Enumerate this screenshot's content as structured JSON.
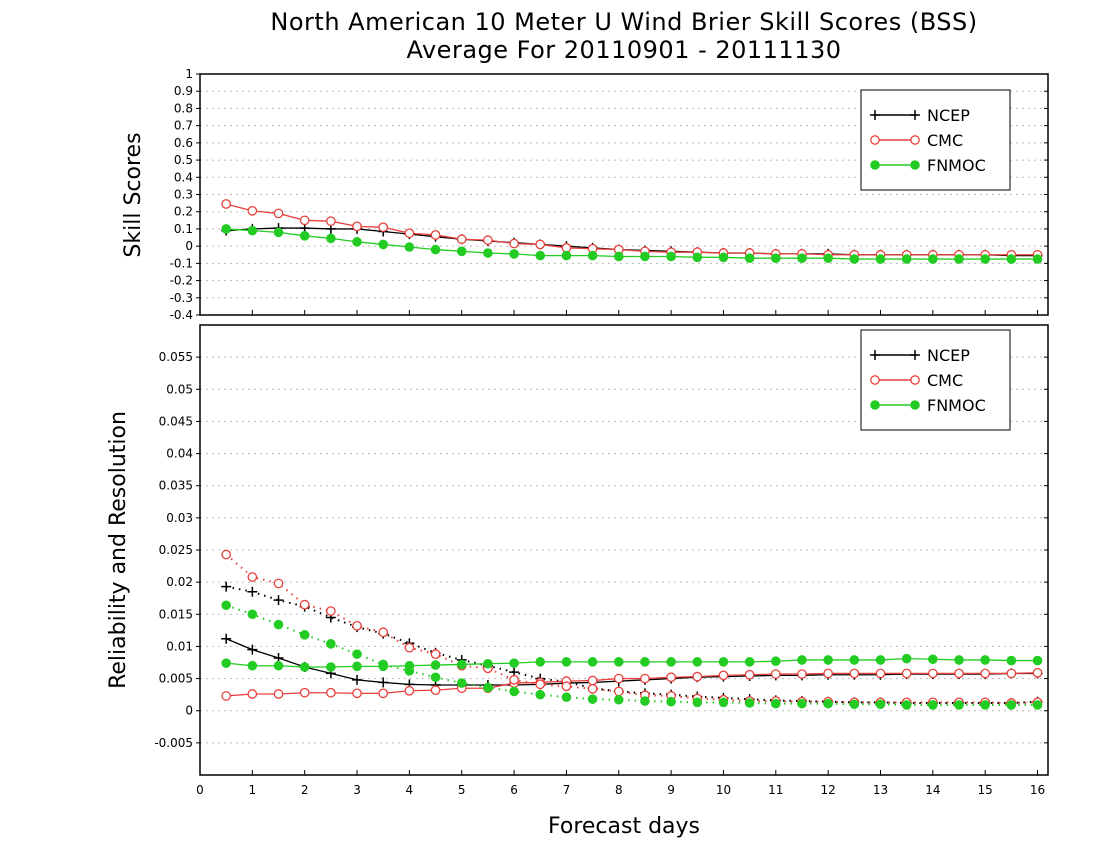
{
  "title_line1": "North American 10 Meter U Wind Brier Skill Scores (BSS)",
  "title_line2": "Average For 20110901 - 20111130",
  "xlabel": "Forecast days",
  "colors": {
    "NCEP": "#000000",
    "CMC": "#e8403c",
    "FNMOC": "#22cc22"
  },
  "chart_data": [
    {
      "type": "line",
      "ylabel": "Skill Scores",
      "xlim": [
        0,
        16.2
      ],
      "ylim": [
        -0.4,
        1
      ],
      "yticks": [
        "-0.4",
        "-0.3",
        "-0.2",
        "-0.1",
        "0",
        "0.1",
        "0.2",
        "0.3",
        "0.4",
        "0.5",
        "0.6",
        "0.7",
        "0.8",
        "0.9",
        "1"
      ],
      "grid": true,
      "legend": "top-right",
      "x": [
        0.5,
        1,
        1.5,
        2,
        2.5,
        3,
        3.5,
        4,
        4.5,
        5,
        5.5,
        6,
        6.5,
        7,
        7.5,
        8,
        8.5,
        9,
        9.5,
        10,
        10.5,
        11,
        11.5,
        12,
        12.5,
        13,
        13.5,
        14,
        14.5,
        15,
        15.5,
        16
      ],
      "series": [
        {
          "name": "NCEP",
          "style": "solid",
          "marker": "plus",
          "values": [
            0.09,
            0.1,
            0.105,
            0.105,
            0.1,
            0.1,
            0.085,
            0.07,
            0.055,
            0.04,
            0.03,
            0.02,
            0.01,
            0.0,
            -0.01,
            -0.02,
            -0.025,
            -0.03,
            -0.035,
            -0.04,
            -0.04,
            -0.045,
            -0.045,
            -0.045,
            -0.05,
            -0.05,
            -0.05,
            -0.05,
            -0.05,
            -0.05,
            -0.055,
            -0.055
          ]
        },
        {
          "name": "CMC",
          "style": "solid",
          "marker": "circle-open",
          "values": [
            0.245,
            0.205,
            0.19,
            0.15,
            0.145,
            0.115,
            0.11,
            0.075,
            0.065,
            0.04,
            0.035,
            0.015,
            0.01,
            -0.01,
            -0.015,
            -0.02,
            -0.03,
            -0.035,
            -0.035,
            -0.04,
            -0.04,
            -0.045,
            -0.045,
            -0.05,
            -0.05,
            -0.05,
            -0.05,
            -0.05,
            -0.05,
            -0.05,
            -0.05,
            -0.05
          ]
        },
        {
          "name": "FNMOC",
          "style": "solid",
          "marker": "circle-filled",
          "values": [
            0.1,
            0.09,
            0.08,
            0.06,
            0.045,
            0.025,
            0.01,
            -0.005,
            -0.02,
            -0.03,
            -0.04,
            -0.045,
            -0.055,
            -0.055,
            -0.055,
            -0.06,
            -0.06,
            -0.06,
            -0.065,
            -0.065,
            -0.07,
            -0.07,
            -0.07,
            -0.07,
            -0.075,
            -0.075,
            -0.075,
            -0.075,
            -0.075,
            -0.075,
            -0.075,
            -0.075
          ]
        }
      ]
    },
    {
      "type": "line",
      "ylabel": "Reliability and Resolution",
      "xlim": [
        0,
        16.2
      ],
      "ylim": [
        -0.01,
        0.06
      ],
      "yticks": [
        "-0.005",
        "0",
        "0.005",
        "0.01",
        "0.015",
        "0.02",
        "0.025",
        "0.03",
        "0.035",
        "0.04",
        "0.045",
        "0.05",
        "0.055"
      ],
      "xticks": [
        "0",
        "1",
        "2",
        "3",
        "4",
        "5",
        "6",
        "7",
        "8",
        "9",
        "10",
        "11",
        "12",
        "13",
        "14",
        "15",
        "16"
      ],
      "grid": true,
      "legend": "top-right",
      "x": [
        0.5,
        1,
        1.5,
        2,
        2.5,
        3,
        3.5,
        4,
        4.5,
        5,
        5.5,
        6,
        6.5,
        7,
        7.5,
        8,
        8.5,
        9,
        9.5,
        10,
        10.5,
        11,
        11.5,
        12,
        12.5,
        13,
        13.5,
        14,
        14.5,
        15,
        15.5,
        16
      ],
      "series": [
        {
          "name": "NCEP",
          "style": "solid",
          "marker": "plus",
          "values": [
            0.0112,
            0.0095,
            0.0082,
            0.0068,
            0.0058,
            0.0048,
            0.0044,
            0.0041,
            0.004,
            0.004,
            0.004,
            0.004,
            0.0041,
            0.0043,
            0.0044,
            0.0046,
            0.0048,
            0.005,
            0.0052,
            0.0053,
            0.0054,
            0.0055,
            0.0055,
            0.0056,
            0.0056,
            0.0056,
            0.0057,
            0.0057,
            0.0057,
            0.0057,
            0.0058,
            0.0058
          ]
        },
        {
          "series_role": "reliability",
          "style": "dotted",
          "marker": "plus",
          "values": [
            0.0193,
            0.0185,
            0.0172,
            0.0162,
            0.0145,
            0.013,
            0.012,
            0.0105,
            0.009,
            0.0079,
            0.007,
            0.006,
            0.005,
            0.0045,
            0.0035,
            0.003,
            0.0027,
            0.0025,
            0.0022,
            0.002,
            0.0018,
            0.0016,
            0.0015,
            0.0014,
            0.0013,
            0.0013,
            0.0012,
            0.0012,
            0.0012,
            0.0012,
            0.0012,
            0.0014
          ]
        },
        {
          "name": "CMC",
          "style": "solid",
          "marker": "circle-open",
          "values": [
            0.0023,
            0.0026,
            0.0026,
            0.0028,
            0.0028,
            0.0027,
            0.0027,
            0.0031,
            0.0032,
            0.0035,
            0.0035,
            0.0043,
            0.0044,
            0.0046,
            0.0047,
            0.005,
            0.005,
            0.0052,
            0.0053,
            0.0055,
            0.0056,
            0.0057,
            0.0057,
            0.0058,
            0.0058,
            0.0058,
            0.0058,
            0.0058,
            0.0058,
            0.0058,
            0.0058,
            0.0059
          ]
        },
        {
          "series_role": "reliability",
          "style": "dotted",
          "marker": "circle-open",
          "values": [
            0.0243,
            0.0208,
            0.0198,
            0.0165,
            0.0155,
            0.0132,
            0.0122,
            0.0098,
            0.0088,
            0.007,
            0.0066,
            0.0048,
            0.0041,
            0.0038,
            0.0034,
            0.003,
            0.0024,
            0.0023,
            0.0019,
            0.0017,
            0.0015,
            0.0015,
            0.0014,
            0.0014,
            0.0013,
            0.0013,
            0.0013,
            0.0013,
            0.0013,
            0.0013,
            0.0012,
            0.0013
          ]
        },
        {
          "name": "FNMOC",
          "style": "solid",
          "marker": "circle-filled",
          "values": [
            0.0074,
            0.007,
            0.007,
            0.0068,
            0.0068,
            0.0069,
            0.0069,
            0.007,
            0.0071,
            0.0072,
            0.0073,
            0.0074,
            0.0076,
            0.0076,
            0.0076,
            0.0076,
            0.0076,
            0.0076,
            0.0076,
            0.0076,
            0.0076,
            0.0077,
            0.0079,
            0.0079,
            0.0079,
            0.0079,
            0.0081,
            0.008,
            0.0079,
            0.0079,
            0.0078,
            0.0078
          ]
        },
        {
          "series_role": "reliability",
          "style": "dotted",
          "marker": "circle-filled",
          "values": [
            0.0164,
            0.015,
            0.0134,
            0.0118,
            0.0104,
            0.0088,
            0.0072,
            0.0062,
            0.0052,
            0.0043,
            0.0036,
            0.003,
            0.0025,
            0.0021,
            0.0018,
            0.0017,
            0.0015,
            0.0014,
            0.0013,
            0.0013,
            0.0012,
            0.0011,
            0.0011,
            0.0011,
            0.001,
            0.001,
            0.0009,
            0.0009,
            0.0009,
            0.0009,
            0.0009,
            0.0009
          ]
        }
      ]
    }
  ]
}
